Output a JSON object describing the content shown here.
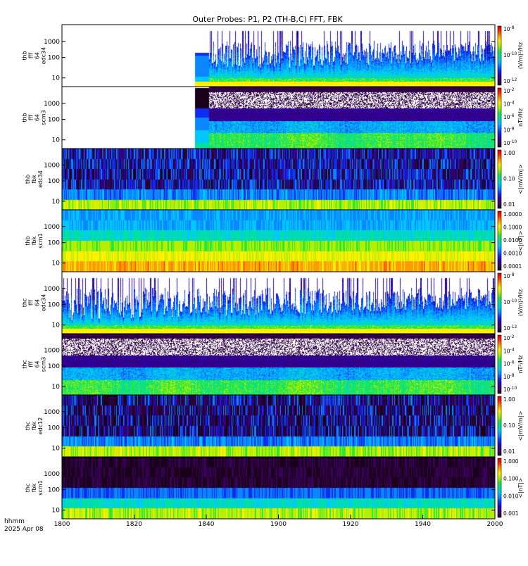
{
  "title": "Outer Probes: P1, P2 (TH-B,C) FFT, FBK",
  "footer": {
    "time_label": "hhmm",
    "date_label": "2025 Apr 08"
  },
  "colors": {
    "spectrum_scale": [
      "#1a001a",
      "#3a005e",
      "#2c00a8",
      "#0f2cf0",
      "#0a86ff",
      "#00c8ff",
      "#00e0a0",
      "#28e83a",
      "#b4ef00",
      "#fff000",
      "#ff9a00",
      "#ff2a00",
      "#d40000"
    ],
    "background": "#ffffff",
    "frame": "#000000"
  },
  "chart_data": {
    "type": "heatmap",
    "x_range": [
      0,
      200
    ],
    "x_ticks": [
      {
        "value": 0,
        "label": "1800"
      },
      {
        "value": 40,
        "label": "1820"
      },
      {
        "value": 80,
        "label": "1840"
      },
      {
        "value": 120,
        "label": "1900"
      },
      {
        "value": 160,
        "label": "1920"
      },
      {
        "value": 200,
        "label": "1940"
      },
      {
        "value": 240,
        "label": "2000"
      }
    ],
    "panels": [
      {
        "probe": "thb",
        "instrument": "fff",
        "band": "64",
        "quantity": "edc34",
        "kind": "fff_e",
        "y_ticks": [
          "1000",
          "100",
          "10"
        ],
        "colorbar_ticks": [
          {
            "label": "10",
            "exp": "-8"
          },
          {
            "label": "10",
            "exp": "-10"
          },
          {
            "label": "10",
            "exp": "-12"
          }
        ],
        "colorbar_unit": "(V/m)²/Hz",
        "data_start": 0.34
      },
      {
        "probe": "thb",
        "instrument": "fff",
        "band": "64",
        "quantity": "scm3",
        "kind": "fff_b",
        "y_ticks": [
          "1000",
          "100",
          "10"
        ],
        "colorbar_ticks": [
          {
            "label": "10",
            "exp": "-2"
          },
          {
            "label": "10",
            "exp": "-4"
          },
          {
            "label": "10",
            "exp": "-6"
          },
          {
            "label": "10",
            "exp": "-8"
          },
          {
            "label": "10",
            "exp": "-10"
          }
        ],
        "colorbar_unit": "nT²/Hz",
        "data_start": 0.34
      },
      {
        "probe": "thb",
        "instrument": "fbk",
        "band": "",
        "quantity": "edc34",
        "kind": "fbk_e",
        "y_ticks": [
          "1000",
          "100",
          "10"
        ],
        "colorbar_ticks": [
          {
            "label": "1.00",
            "exp": ""
          },
          {
            "label": "0.10",
            "exp": ""
          },
          {
            "label": "0.01",
            "exp": ""
          }
        ],
        "colorbar_unit": "<|mV/m|>",
        "data_start": 0
      },
      {
        "probe": "thb",
        "instrument": "fbk",
        "band": "",
        "quantity": "scm1",
        "kind": "fbk_b",
        "y_ticks": [
          "1000",
          "100",
          "10"
        ],
        "colorbar_ticks": [
          {
            "label": "1.0000",
            "exp": ""
          },
          {
            "label": "0.1000",
            "exp": ""
          },
          {
            "label": "0.0100",
            "exp": ""
          },
          {
            "label": "0.0010",
            "exp": ""
          },
          {
            "label": "0.0001",
            "exp": ""
          }
        ],
        "colorbar_unit": "<|nT|>",
        "data_start": 0
      },
      {
        "probe": "thc",
        "instrument": "fff",
        "band": "64",
        "quantity": "edc34",
        "kind": "fff_e",
        "y_ticks": [
          "1000",
          "100",
          "10"
        ],
        "colorbar_ticks": [
          {
            "label": "10",
            "exp": "-8"
          },
          {
            "label": "10",
            "exp": "-10"
          },
          {
            "label": "10",
            "exp": "-12"
          }
        ],
        "colorbar_unit": "(V/m)²/Hz",
        "data_start": 0
      },
      {
        "probe": "thc",
        "instrument": "fff",
        "band": "64",
        "quantity": "scm3",
        "kind": "fff_b",
        "y_ticks": [
          "1000",
          "100",
          "10"
        ],
        "colorbar_ticks": [
          {
            "label": "10",
            "exp": "-2"
          },
          {
            "label": "10",
            "exp": "-4"
          },
          {
            "label": "10",
            "exp": "-6"
          },
          {
            "label": "10",
            "exp": "-8"
          },
          {
            "label": "10",
            "exp": "-10"
          }
        ],
        "colorbar_unit": "nT²/Hz",
        "data_start": 0
      },
      {
        "probe": "thc",
        "instrument": "fbk",
        "band": "",
        "quantity": "edc12",
        "kind": "fbk_e2",
        "y_ticks": [
          "1000",
          "100",
          "10"
        ],
        "colorbar_ticks": [
          {
            "label": "1.00",
            "exp": ""
          },
          {
            "label": "0.10",
            "exp": ""
          },
          {
            "label": "0.01",
            "exp": ""
          }
        ],
        "colorbar_unit": "<|mV/m|>",
        "data_start": 0
      },
      {
        "probe": "thc",
        "instrument": "fbk",
        "band": "",
        "quantity": "scm1",
        "kind": "fbk_b2",
        "y_ticks": [
          "1000",
          "100",
          "10"
        ],
        "colorbar_ticks": [
          {
            "label": "1.000",
            "exp": ""
          },
          {
            "label": "0.100",
            "exp": ""
          },
          {
            "label": "0.010",
            "exp": ""
          },
          {
            "label": "0.001",
            "exp": ""
          }
        ],
        "colorbar_unit": "<|nT|>",
        "data_start": 0
      }
    ]
  }
}
